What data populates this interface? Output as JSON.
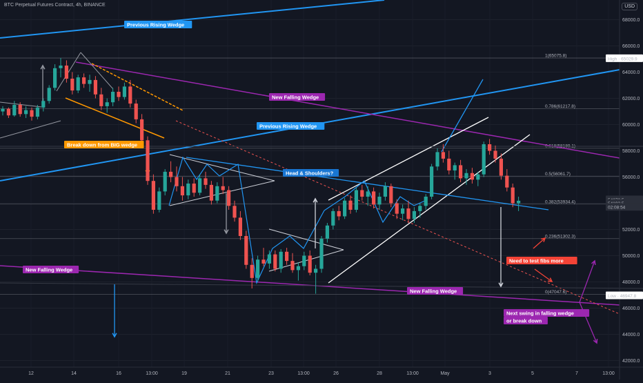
{
  "header": {
    "title": "BTC Perpetual Futures Contract, 4h, BINANCE",
    "currency": "USD"
  },
  "chart_data": {
    "type": "candlestick",
    "title": "BTC Perpetual Futures Contract, 4h, BINANCE",
    "y_axis": {
      "range": [
        41500,
        69500
      ],
      "ticks": [
        "42000.0",
        "44000.0",
        "46000.0",
        "48000.0",
        "50000.0",
        "52000.0",
        "54000.0",
        "56000.0",
        "58000.0",
        "60000.0",
        "62000.0",
        "64000.0",
        "66000.0",
        "68000.0"
      ]
    },
    "x_axis": {
      "ticks": [
        "12",
        "14",
        "16",
        "13:00",
        "19",
        "21",
        "23",
        "13:00",
        "26",
        "28",
        "13:00",
        "May",
        "3",
        "5",
        "7",
        "13:00"
      ]
    },
    "price_tags": [
      {
        "text": "High · 65029.9",
        "price": 65030,
        "color": "#ffffff",
        "text_color": "#131722"
      },
      {
        "text": "54272.5",
        "price": 54272,
        "color": "#2a2e39",
        "text_color": "#d1d4dc"
      },
      {
        "text": "54192.5",
        "price": 53990,
        "color": "#2a2e39",
        "text_color": "#d1d4dc"
      },
      {
        "text": "02:08:54",
        "price": 53700,
        "color": "#2a2e39",
        "text_color": "#d1d4dc"
      },
      {
        "text": "Low · 46947.8",
        "price": 46948,
        "color": "#ffffff",
        "text_color": "#131722"
      }
    ],
    "fib_levels": [
      {
        "label": "1(65075.8)",
        "price": 65076
      },
      {
        "label": "0.786(61217.8)",
        "price": 61218
      },
      {
        "label": "0.618(58189.1)",
        "price": 58189
      },
      {
        "label": "0.5(56061.7)",
        "price": 56062
      },
      {
        "label": "0.382(53934.4)",
        "price": 53934
      },
      {
        "label": "0.236(51302.3)",
        "price": 51302
      },
      {
        "label": "0(47047.6)",
        "price": 47048
      }
    ],
    "annotations": [
      {
        "text": "Previous Rising Wedge",
        "bg": "#2196f3",
        "fg": "#ffffff"
      },
      {
        "text": "New Falling Wedge",
        "bg": "#9c27b0",
        "fg": "#ffffff"
      },
      {
        "text": "Previous Rising Wedge",
        "bg": "#2196f3",
        "fg": "#ffffff"
      },
      {
        "text": "Break down from BIG wedge",
        "bg": "#ff9800",
        "fg": "#ffffff"
      },
      {
        "text": "Head & Shoulders?",
        "bg": "#1976d2",
        "fg": "#ffffff"
      },
      {
        "text": "New Falling Wedge",
        "bg": "#9c27b0",
        "fg": "#ffffff"
      },
      {
        "text": "New Falling Wedge",
        "bg": "#9c27b0",
        "fg": "#ffffff"
      },
      {
        "text": "Need to test fibs more",
        "bg": "#f44336",
        "fg": "#ffffff"
      },
      {
        "text": "Next swing in falling wedge",
        "bg": "#9c27b0",
        "fg": "#ffffff"
      },
      {
        "text": "or break down",
        "bg": "#9c27b0",
        "fg": "#ffffff"
      }
    ],
    "candles": [
      [
        61000,
        61400,
        60700,
        61200
      ],
      [
        61200,
        61300,
        60500,
        60700
      ],
      [
        60700,
        61800,
        60600,
        61500
      ],
      [
        61500,
        61700,
        60600,
        60800
      ],
      [
        60800,
        61400,
        60500,
        61100
      ],
      [
        61100,
        61300,
        60300,
        60600
      ],
      [
        60600,
        61500,
        60400,
        61300
      ],
      [
        61300,
        62000,
        61000,
        61800
      ],
      [
        61800,
        63000,
        61600,
        62800
      ],
      [
        62800,
        64600,
        62600,
        64300
      ],
      [
        64300,
        65076,
        63600,
        64500
      ],
      [
        64500,
        64900,
        63200,
        63500
      ],
      [
        63500,
        64000,
        62300,
        62600
      ],
      [
        62600,
        63800,
        62400,
        63600
      ],
      [
        63600,
        63900,
        62800,
        63100
      ],
      [
        63100,
        63800,
        62500,
        63400
      ],
      [
        63400,
        63700,
        62000,
        62300
      ],
      [
        62300,
        62800,
        61100,
        61400
      ],
      [
        61400,
        62000,
        60900,
        61700
      ],
      [
        61700,
        62800,
        61400,
        62500
      ],
      [
        62500,
        62900,
        61800,
        62100
      ],
      [
        62100,
        63200,
        61900,
        62900
      ],
      [
        62900,
        63400,
        61300,
        61600
      ],
      [
        61600,
        61900,
        60100,
        60400
      ],
      [
        60400,
        60800,
        58500,
        58800
      ],
      [
        58800,
        59100,
        55400,
        55700
      ],
      [
        55700,
        56200,
        53200,
        53500
      ],
      [
        53500,
        55200,
        53300,
        54900
      ],
      [
        54900,
        56600,
        54600,
        56400
      ],
      [
        56400,
        57200,
        55600,
        56000
      ],
      [
        56000,
        56800,
        54900,
        55300
      ],
      [
        55300,
        56000,
        54200,
        54600
      ],
      [
        54600,
        55800,
        54300,
        55500
      ],
      [
        55500,
        55900,
        54500,
        54800
      ],
      [
        54800,
        56200,
        54600,
        55900
      ],
      [
        55900,
        56400,
        55100,
        55400
      ],
      [
        55400,
        55700,
        53900,
        54200
      ],
      [
        54200,
        55600,
        54000,
        55300
      ],
      [
        55300,
        56000,
        54700,
        55000
      ],
      [
        55000,
        55300,
        53500,
        53800
      ],
      [
        53800,
        54200,
        52600,
        52900
      ],
      [
        52900,
        53400,
        51200,
        51500
      ],
      [
        51500,
        51900,
        49000,
        49300
      ],
      [
        49300,
        49800,
        47500,
        48300
      ],
      [
        48300,
        50000,
        48000,
        49700
      ],
      [
        49700,
        50600,
        49200,
        49400
      ],
      [
        49400,
        50400,
        49000,
        50100
      ],
      [
        50100,
        50400,
        48800,
        49000
      ],
      [
        49000,
        50500,
        48700,
        50300
      ],
      [
        50300,
        50600,
        49300,
        49600
      ],
      [
        49600,
        50200,
        48700,
        48900
      ],
      [
        48900,
        49500,
        48100,
        49200
      ],
      [
        49200,
        50300,
        48900,
        50000
      ],
      [
        50000,
        50400,
        48500,
        48700
      ],
      [
        48700,
        49300,
        47100,
        49000
      ],
      [
        49000,
        51500,
        48700,
        51300
      ],
      [
        51300,
        52500,
        51000,
        52300
      ],
      [
        52300,
        53600,
        52000,
        53400
      ],
      [
        53400,
        53800,
        52700,
        53000
      ],
      [
        53000,
        54400,
        52800,
        54200
      ],
      [
        54200,
        54600,
        53200,
        53500
      ],
      [
        53500,
        55200,
        53300,
        55000
      ],
      [
        55000,
        55400,
        54200,
        54500
      ],
      [
        54500,
        55300,
        53800,
        54900
      ],
      [
        54900,
        55200,
        53600,
        53900
      ],
      [
        53900,
        54800,
        53500,
        54500
      ],
      [
        54500,
        55600,
        54200,
        55300
      ],
      [
        55300,
        55500,
        53700,
        54000
      ],
      [
        54000,
        54300,
        52800,
        53200
      ],
      [
        53200,
        53900,
        52700,
        53600
      ],
      [
        53600,
        54200,
        52500,
        52800
      ],
      [
        52800,
        53700,
        52500,
        53400
      ],
      [
        53400,
        54000,
        52900,
        53800
      ],
      [
        53800,
        54700,
        53500,
        54500
      ],
      [
        54500,
        57000,
        54300,
        56800
      ],
      [
        56800,
        58200,
        56500,
        57900
      ],
      [
        57900,
        58500,
        57100,
        57400
      ],
      [
        57400,
        58000,
        56200,
        56500
      ],
      [
        56500,
        57100,
        55800,
        56900
      ],
      [
        56900,
        57300,
        55600,
        55900
      ],
      [
        55900,
        56600,
        55400,
        56300
      ],
      [
        56300,
        56700,
        55500,
        55800
      ],
      [
        55800,
        56400,
        55300,
        56200
      ],
      [
        56200,
        58700,
        56000,
        58500
      ],
      [
        58500,
        58900,
        57700,
        58000
      ],
      [
        58000,
        58400,
        57100,
        57400
      ],
      [
        57400,
        57800,
        55800,
        56100
      ],
      [
        56100,
        56600,
        54900,
        55200
      ],
      [
        55200,
        55500,
        53700,
        54000
      ],
      [
        54000,
        54500,
        53400,
        54190
      ]
    ]
  }
}
